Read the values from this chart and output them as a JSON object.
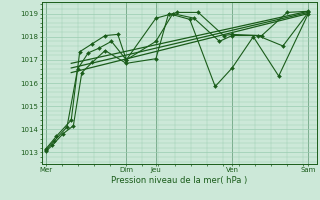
{
  "bg_color": "#cce8d8",
  "grid_color": "#99ccb0",
  "line_color": "#1a5c1a",
  "xlabel": "Pression niveau de la mer( hPa )",
  "ylim": [
    1012.5,
    1019.5
  ],
  "yticks": [
    1013,
    1014,
    1015,
    1016,
    1017,
    1018,
    1019
  ],
  "xlim": [
    0,
    6.5
  ],
  "xtick_labels": [
    "Mer",
    "Dim",
    "Jeu",
    "Ven",
    "Sam"
  ],
  "xtick_positions": [
    0.1,
    2.0,
    2.7,
    4.5,
    6.3
  ],
  "vline_positions": [
    0.1,
    2.0,
    2.7,
    4.5,
    6.3
  ],
  "trend1_x": [
    0.7,
    6.3
  ],
  "trend1_y": [
    1016.45,
    1019.0
  ],
  "trend2_x": [
    0.7,
    6.3
  ],
  "trend2_y": [
    1016.65,
    1019.05
  ],
  "trend3_x": [
    0.7,
    6.3
  ],
  "trend3_y": [
    1016.85,
    1019.1
  ],
  "s1_x": [
    0.1,
    0.25,
    0.5,
    0.75,
    0.95,
    1.2,
    1.5,
    2.0,
    2.7,
    3.0,
    3.5,
    4.1,
    4.5,
    5.0,
    5.6,
    6.3
  ],
  "s1_y": [
    1013.05,
    1013.3,
    1013.8,
    1014.15,
    1016.45,
    1016.9,
    1017.4,
    1016.85,
    1017.05,
    1019.0,
    1018.75,
    1015.85,
    1016.65,
    1018.0,
    1016.3,
    1019.0
  ],
  "s2_x": [
    0.1,
    0.3,
    0.6,
    0.85,
    1.1,
    1.35,
    1.65,
    2.0,
    2.7,
    3.1,
    3.6,
    4.2,
    4.5,
    5.1,
    5.7,
    6.3
  ],
  "s2_y": [
    1013.1,
    1013.5,
    1014.1,
    1016.6,
    1017.3,
    1017.5,
    1017.8,
    1017.0,
    1017.8,
    1019.0,
    1018.8,
    1017.8,
    1018.05,
    1018.05,
    1017.6,
    1019.05
  ],
  "s3_x": [
    0.1,
    0.35,
    0.7,
    0.9,
    1.2,
    1.5,
    1.8,
    2.0,
    2.7,
    3.2,
    3.7,
    4.3,
    4.5,
    5.2,
    5.8,
    6.3
  ],
  "s3_y": [
    1013.15,
    1013.7,
    1014.4,
    1017.35,
    1017.7,
    1018.05,
    1018.1,
    1017.0,
    1018.8,
    1019.05,
    1019.05,
    1018.05,
    1018.1,
    1018.05,
    1019.05,
    1019.1
  ]
}
